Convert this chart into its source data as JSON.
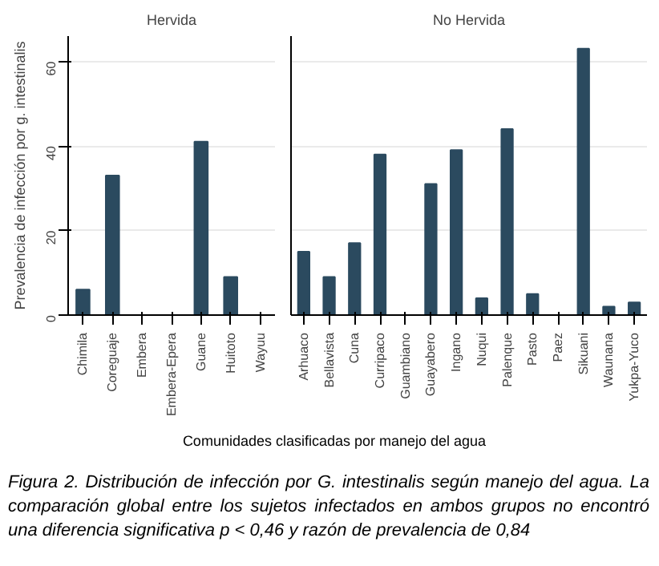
{
  "chart_data": [
    {
      "type": "bar",
      "title": "Hervida",
      "ylabel": "Prevalencia de infección por g. intestinalis",
      "categories": [
        "Chimila",
        "Coreguaje",
        "Embera",
        "Embera-Epera",
        "Guane",
        "Huitoto",
        "Wayuu"
      ],
      "values": [
        6,
        33,
        0,
        0,
        41,
        9,
        0
      ],
      "color": "#2b4a5f",
      "ylim": [
        0,
        66
      ],
      "yticks": [
        0,
        20,
        40,
        60
      ],
      "grid": "y"
    },
    {
      "type": "bar",
      "title": "No Hervida",
      "xlabel": "Comunidades clasificadas por manejo del agua",
      "categories": [
        "Arhuaco",
        "Bellavista",
        "Cuna",
        "Curripaco",
        "Guambiano",
        "Guayabero",
        "Ingano",
        "Nuqui",
        "Palenque",
        "Pasto",
        "Paez",
        "Sikuani",
        "Waunana",
        "Yukpa-Yuco"
      ],
      "values": [
        15,
        9,
        17,
        38,
        0,
        31,
        39,
        4,
        44,
        5,
        0,
        63,
        2,
        3
      ],
      "color": "#2b4a5f",
      "ylim": [
        0,
        66
      ],
      "yticks": [
        0,
        20,
        40,
        60
      ],
      "grid": "y",
      "tick_labels": "x",
      "annotations": [
        "Figura 2. Distribución de infección por G. intestinalis según manejo del agua. La comparación global entre los sujetos infectados en ambos grupos no encontró una diferencia significativa p < 0,46 y razón de prevalencia de 0,84"
      ]
    }
  ]
}
